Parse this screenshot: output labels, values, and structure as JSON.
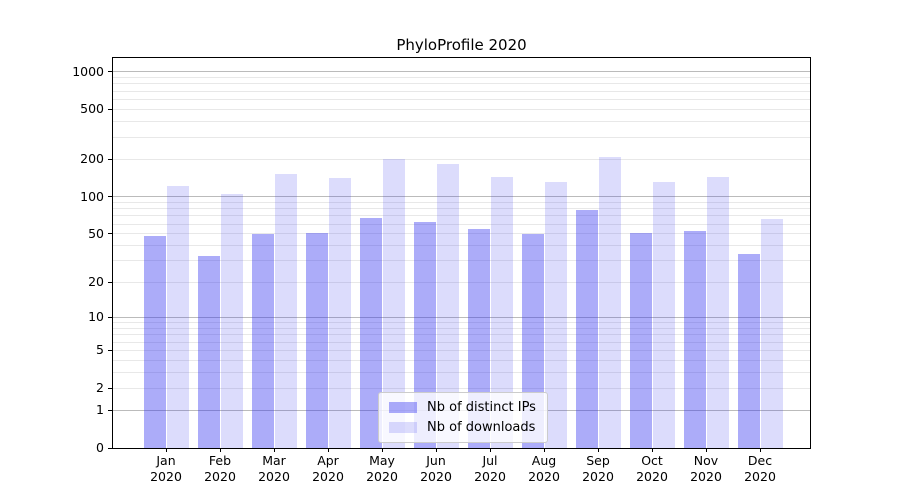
{
  "title": "PhyloProfile 2020",
  "colors": {
    "bar_distinct_ips": "rgba(47,47,239,0.40)",
    "bar_downloads": "rgba(47,47,239,0.17)",
    "grid_major": "#bbbbbb",
    "grid_minor": "#e8e8e8",
    "spine": "#000000",
    "legend_border": "#cccccc"
  },
  "chart_data": {
    "type": "bar",
    "title": "PhyloProfile 2020",
    "categories": [
      "Jan 2020",
      "Feb 2020",
      "Mar 2020",
      "Apr 2020",
      "May 2020",
      "Jun 2020",
      "Jul 2020",
      "Aug 2020",
      "Sep 2020",
      "Oct 2020",
      "Nov 2020",
      "Dec 2020"
    ],
    "series": [
      {
        "name": "Nb of distinct IPs",
        "values": [
          48,
          33,
          50,
          51,
          67,
          63,
          55,
          50,
          78,
          51,
          53,
          34
        ]
      },
      {
        "name": "Nb of downloads",
        "values": [
          122,
          106,
          152,
          140,
          200,
          184,
          145,
          130,
          209,
          130,
          145,
          66
        ]
      }
    ],
    "xlabel": "",
    "ylabel": "",
    "yscale": "log1p",
    "ylim": [
      0,
      1290
    ],
    "yticks": [
      1000,
      500,
      200,
      100,
      50,
      20,
      10,
      5,
      2,
      1,
      0
    ],
    "grid": true,
    "grid_minor_ticks": [
      2,
      3,
      4,
      5,
      6,
      7,
      8,
      9,
      20,
      30,
      40,
      50,
      60,
      70,
      80,
      90,
      200,
      300,
      400,
      500,
      600,
      700,
      800,
      900
    ],
    "grid_major_ticks": [
      1,
      10,
      100,
      1000
    ],
    "legend_position": "lower center"
  }
}
